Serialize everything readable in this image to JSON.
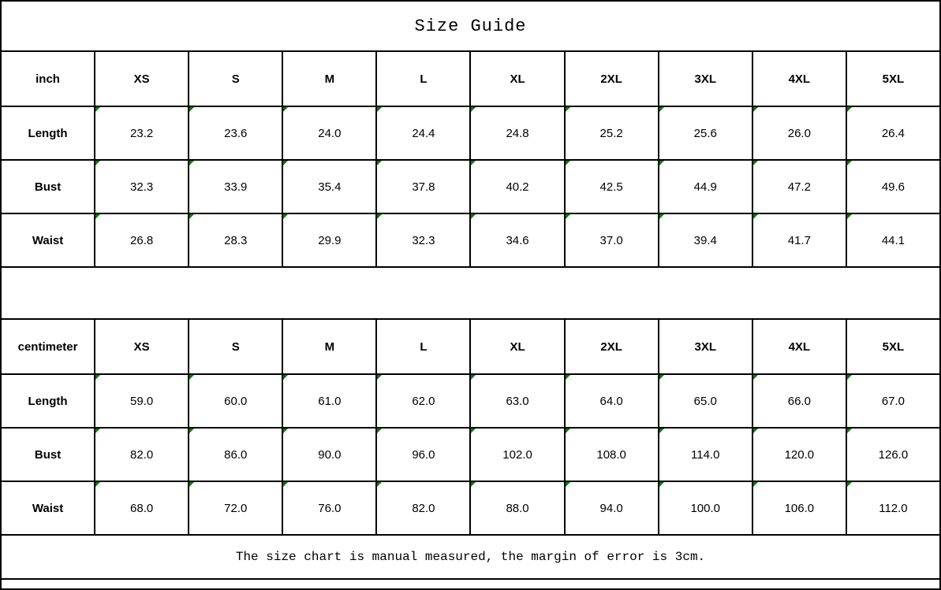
{
  "title": "Size Guide",
  "tables": [
    {
      "unit_label": "inch",
      "sizes": [
        "XS",
        "S",
        "M",
        "L",
        "XL",
        "2XL",
        "3XL",
        "4XL",
        "5XL"
      ],
      "rows": [
        {
          "label": "Length",
          "values": [
            "23.2",
            "23.6",
            "24.0",
            "24.4",
            "24.8",
            "25.2",
            "25.6",
            "26.0",
            "26.4"
          ]
        },
        {
          "label": "Bust",
          "values": [
            "32.3",
            "33.9",
            "35.4",
            "37.8",
            "40.2",
            "42.5",
            "44.9",
            "47.2",
            "49.6"
          ]
        },
        {
          "label": "Waist",
          "values": [
            "26.8",
            "28.3",
            "29.9",
            "32.3",
            "34.6",
            "37.0",
            "39.4",
            "41.7",
            "44.1"
          ]
        }
      ]
    },
    {
      "unit_label": "centimeter",
      "sizes": [
        "XS",
        "S",
        "M",
        "L",
        "XL",
        "2XL",
        "3XL",
        "4XL",
        "5XL"
      ],
      "rows": [
        {
          "label": "Length",
          "values": [
            "59.0",
            "60.0",
            "61.0",
            "62.0",
            "63.0",
            "64.0",
            "65.0",
            "66.0",
            "67.0"
          ]
        },
        {
          "label": "Bust",
          "values": [
            "82.0",
            "86.0",
            "90.0",
            "96.0",
            "102.0",
            "108.0",
            "114.0",
            "120.0",
            "126.0"
          ]
        },
        {
          "label": "Waist",
          "values": [
            "68.0",
            "72.0",
            "76.0",
            "82.0",
            "88.0",
            "94.0",
            "100.0",
            "106.0",
            "112.0"
          ]
        }
      ]
    }
  ],
  "footer_note": "The size chart is manual measured, the margin of error is 3cm.",
  "colors": {
    "border": "#000000",
    "background": "#ffffff",
    "text": "#000000",
    "cell_marker_green": "#008000"
  }
}
